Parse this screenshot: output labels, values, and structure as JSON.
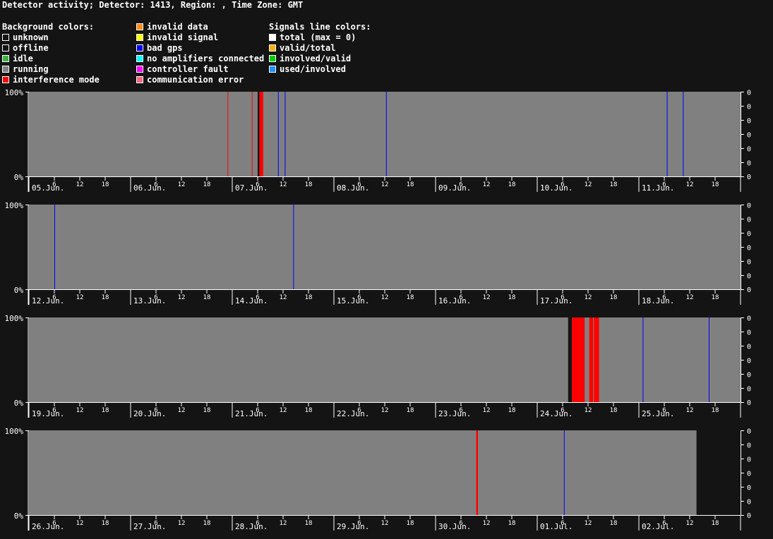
{
  "header": {
    "title": "Detector activity; Detector: 1413, Region: , Time Zone: GMT"
  },
  "legend": {
    "background_title": "Background colors:",
    "background_col1": [
      {
        "label": "unknown",
        "color": "#141414"
      },
      {
        "label": "offline",
        "color": "#141414"
      },
      {
        "label": "idle",
        "color": "#3cb043"
      },
      {
        "label": "running",
        "color": "#808080"
      },
      {
        "label": "interference mode",
        "color": "#ff0000"
      }
    ],
    "background_col2": [
      {
        "label": "invalid data",
        "color": "#ff8c1a"
      },
      {
        "label": "invalid signal",
        "color": "#ffff00"
      },
      {
        "label": "bad gps",
        "color": "#0000ff"
      },
      {
        "label": "no amplifiers connected",
        "color": "#00ffff"
      },
      {
        "label": "controller fault",
        "color": "#ff00ff"
      },
      {
        "label": "communication error",
        "color": "#ff6680"
      }
    ],
    "signals_title": "Signals line colors:",
    "signals": [
      {
        "label": "total (max = 0)",
        "color": "#ffffff"
      },
      {
        "label": "valid/total",
        "color": "#ffb000"
      },
      {
        "label": "involved/valid",
        "color": "#00cc00"
      },
      {
        "label": "used/involved",
        "color": "#1e90ff"
      }
    ]
  },
  "chart_data": {
    "type": "timeline",
    "y_left_ticks": [
      "100%",
      "0%"
    ],
    "y_right_ticks": [
      "0",
      "0",
      "0",
      "0",
      "0",
      "0"
    ],
    "hour_ticks": [
      "6",
      "12",
      "18"
    ],
    "colors": {
      "running": "#808080",
      "offline": "#141414",
      "interference": "#ff0000",
      "bad_gps": "#0000ff"
    },
    "rows": [
      {
        "days": [
          "05.Jun.",
          "06.Jun.",
          "07.Jun.",
          "08.Jun.",
          "09.Jun.",
          "10.Jun.",
          "11.Jun."
        ],
        "running_until_hours": 168,
        "events": [
          {
            "type": "interference",
            "start": 46.9,
            "end": 47.0
          },
          {
            "type": "interference",
            "start": 52.6,
            "end": 52.7
          },
          {
            "type": "offline",
            "start": 54.0,
            "end": 54.4
          },
          {
            "type": "interference",
            "start": 54.4,
            "end": 55.3
          },
          {
            "type": "bad_gps",
            "start": 58.8,
            "end": 58.9
          },
          {
            "type": "bad_gps",
            "start": 60.4,
            "end": 60.5
          },
          {
            "type": "bad_gps",
            "start": 84.3,
            "end": 84.4
          },
          {
            "type": "bad_gps",
            "start": 150.6,
            "end": 150.7
          },
          {
            "type": "bad_gps",
            "start": 154.4,
            "end": 154.5
          }
        ]
      },
      {
        "days": [
          "12.Jun.",
          "13.Jun.",
          "14.Jun.",
          "15.Jun.",
          "16.Jun.",
          "17.Jun.",
          "18.Jun."
        ],
        "running_until_hours": 168,
        "events": [
          {
            "type": "bad_gps",
            "start": 6.0,
            "end": 6.1
          },
          {
            "type": "bad_gps",
            "start": 62.4,
            "end": 62.5
          }
        ]
      },
      {
        "days": [
          "19.Jun.",
          "20.Jun.",
          "21.Jun.",
          "22.Jun.",
          "23.Jun.",
          "24.Jun.",
          "25.Jun."
        ],
        "running_until_hours": 168,
        "events": [
          {
            "type": "offline",
            "start": 127.3,
            "end": 128.2
          },
          {
            "type": "interference",
            "start": 128.2,
            "end": 131.2
          },
          {
            "type": "interference",
            "start": 132.3,
            "end": 133.2
          },
          {
            "type": "interference",
            "start": 133.4,
            "end": 134.6
          },
          {
            "type": "bad_gps",
            "start": 144.9,
            "end": 145.0
          },
          {
            "type": "bad_gps",
            "start": 160.5,
            "end": 160.6
          }
        ]
      },
      {
        "days": [
          "26.Jun.",
          "27.Jun.",
          "28.Jun.",
          "29.Jun.",
          "30.Jun.",
          "01.Jul.",
          "02.Jul."
        ],
        "running_until_hours": 157.6,
        "events": [
          {
            "type": "interference",
            "start": 105.6,
            "end": 106.0
          },
          {
            "type": "bad_gps",
            "start": 126.3,
            "end": 126.4
          }
        ]
      }
    ]
  }
}
